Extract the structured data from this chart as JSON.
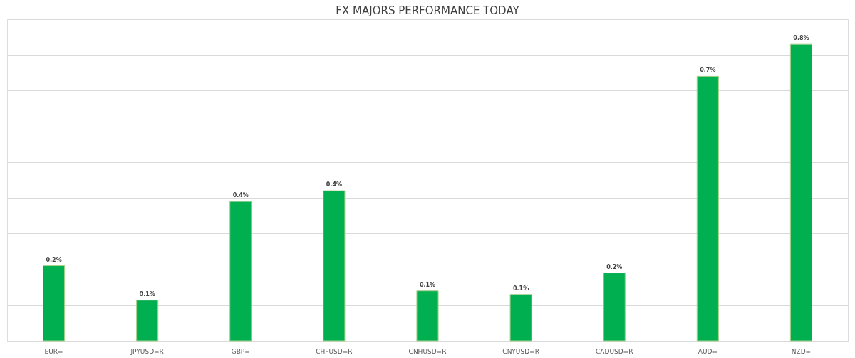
{
  "chart_data": {
    "type": "bar",
    "title": "FX MAJORS PERFORMANCE TODAY",
    "categories": [
      "EUR=",
      "JPYUSD=R",
      "GBP=",
      "CHFUSD=R",
      "CNHUSD=R",
      "CNYUSD=R",
      "CADUSD=R",
      "AUD=",
      "NZD="
    ],
    "values": [
      0.21,
      0.114,
      0.39,
      0.42,
      0.14,
      0.13,
      0.19,
      0.74,
      0.83
    ],
    "value_labels": [
      "0.2%",
      "0.1%",
      "0.4%",
      "0.4%",
      "0.1%",
      "0.1%",
      "0.2%",
      "0.7%",
      "0.8%"
    ],
    "color": "#00b050",
    "ylim": [
      0,
      0.9
    ],
    "yticks": [
      {
        "value": 0,
        "label": null
      },
      {
        "value": 0.1,
        "label": null
      },
      {
        "value": 0.2,
        "label": null
      },
      {
        "value": 0.3,
        "label": null
      },
      {
        "value": 0.4,
        "label": null
      },
      {
        "value": 0.5,
        "label": null
      },
      {
        "value": 0.6,
        "label": null
      },
      {
        "value": 0.7,
        "label": null
      },
      {
        "value": 0.8,
        "label": null
      },
      {
        "value": 0.9,
        "label": null
      }
    ],
    "grid": "y",
    "tick_labels": "x"
  }
}
